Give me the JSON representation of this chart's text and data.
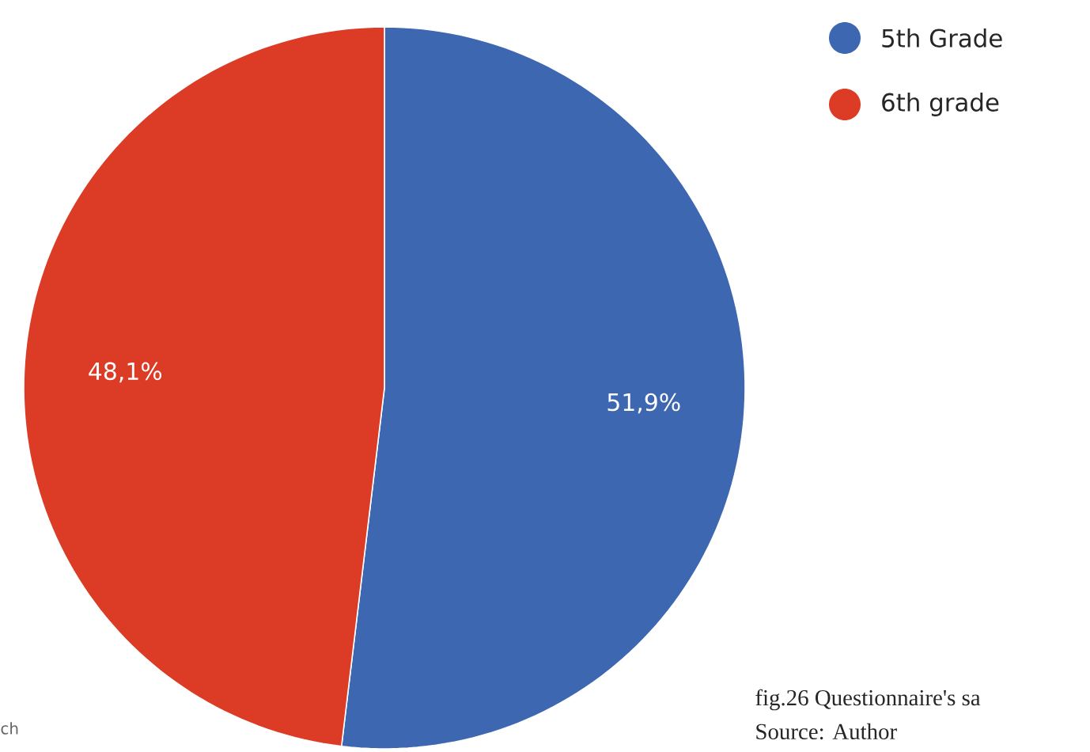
{
  "chart_data": {
    "type": "pie",
    "categories": [
      "5th Grade",
      "6th grade"
    ],
    "values": [
      51.9,
      48.1
    ],
    "colors": [
      "#3e67b1",
      "#dc3b26"
    ],
    "value_labels": [
      "51,9%",
      "48,1%"
    ],
    "legend": "top right",
    "annotations": [
      "fig.26 Questionnaire's sa",
      "Source: Author",
      "ch"
    ]
  }
}
